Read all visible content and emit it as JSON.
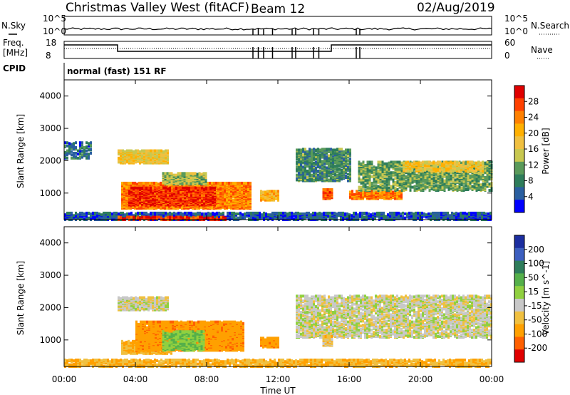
{
  "header": {
    "site": "Christmas Valley West (fitACF)",
    "beam": "Beam 12",
    "date": "02/Aug/2019"
  },
  "params": {
    "nsky_label": "N.Sky",
    "nsearch_label": "N.Search",
    "freq_label_1": "Freq.",
    "freq_label_2": "[MHz]",
    "nave_label": "Nave",
    "cpid_label": "CPID",
    "cpid_text": "normal (fast) 151 RF",
    "noise_ticks": [
      "10^5",
      "10^0"
    ],
    "freq_ticks": [
      "18",
      "8"
    ],
    "nave_ticks": [
      "60",
      "0"
    ]
  },
  "axes": {
    "ylabel": "Slant Range [km]",
    "xlabel": "Time UT",
    "y_ticks": [
      "4000",
      "3000",
      "2000",
      "1000"
    ],
    "x_ticks": [
      "00:00",
      "04:00",
      "08:00",
      "12:00",
      "16:00",
      "20:00",
      "00:00"
    ]
  },
  "colorbars": {
    "power": {
      "label": "Power [dB]",
      "ticks": [
        "28",
        "24",
        "20",
        "16",
        "12",
        "8",
        "4"
      ],
      "colors": [
        "#e00000",
        "#ff4000",
        "#ff8000",
        "#ffb000",
        "#f0c040",
        "#c8c850",
        "#5a9a5a",
        "#2e7d5b",
        "#2a5fa0",
        "#0000ff"
      ]
    },
    "velocity": {
      "label": "Velocity [m s^-1]",
      "ticks": [
        "200",
        "100",
        "50",
        "15",
        "-15",
        "-50",
        "-100",
        "-200"
      ],
      "colors": [
        "#1c2ea0",
        "#3c5fc0",
        "#2e7d5b",
        "#55b04a",
        "#90d040",
        "#c8c8c8",
        "#f0c040",
        "#ffa000",
        "#ff6000",
        "#e00000"
      ]
    }
  },
  "chart_data": [
    {
      "type": "heatmap",
      "title": "Power",
      "xlabel": "Time UT",
      "ylabel": "Slant Range [km]",
      "xlim": [
        0,
        24
      ],
      "ylim": [
        180,
        4500
      ],
      "colorbar": "Power [dB]",
      "regions": [
        {
          "t0": 0.0,
          "t1": 24.0,
          "r0": 200,
          "r1": 420,
          "level": 6,
          "density": 0.7
        },
        {
          "t0": 3.0,
          "t1": 9.0,
          "r0": 200,
          "r1": 300,
          "level": 28,
          "density": 0.6
        },
        {
          "t0": 3.2,
          "t1": 10.5,
          "r0": 550,
          "r1": 1350,
          "level": 24,
          "density": 0.9
        },
        {
          "t0": 3.6,
          "t1": 8.5,
          "r0": 650,
          "r1": 1200,
          "level": 28,
          "density": 0.95
        },
        {
          "t0": 5.5,
          "t1": 8.0,
          "r0": 1300,
          "r1": 1650,
          "level": 14,
          "density": 0.8
        },
        {
          "t0": 3.0,
          "t1": 5.8,
          "r0": 1950,
          "r1": 2350,
          "level": 18,
          "density": 0.8
        },
        {
          "t0": 0.0,
          "t1": 1.5,
          "r0": 2100,
          "r1": 2600,
          "level": 8,
          "density": 0.4
        },
        {
          "t0": 11.0,
          "t1": 12.0,
          "r0": 800,
          "r1": 1100,
          "level": 20,
          "density": 0.7
        },
        {
          "t0": 13.0,
          "t1": 16.0,
          "r0": 1400,
          "r1": 2400,
          "level": 10,
          "density": 0.6
        },
        {
          "t0": 14.5,
          "t1": 15.0,
          "r0": 850,
          "r1": 1150,
          "level": 26,
          "density": 0.9
        },
        {
          "t0": 16.0,
          "t1": 19.0,
          "r0": 850,
          "r1": 1100,
          "level": 24,
          "density": 0.8
        },
        {
          "t0": 16.5,
          "t1": 24.0,
          "r0": 1100,
          "r1": 2000,
          "level": 12,
          "density": 0.55
        },
        {
          "t0": 19.0,
          "t1": 23.5,
          "r0": 1700,
          "r1": 2000,
          "level": 18,
          "density": 0.6
        }
      ]
    },
    {
      "type": "heatmap",
      "title": "Velocity",
      "xlabel": "Time UT",
      "ylabel": "Slant Range [km]",
      "xlim": [
        0,
        24
      ],
      "ylim": [
        180,
        4500
      ],
      "colorbar": "Velocity [m s^-1]",
      "regions": [
        {
          "t0": 0.0,
          "t1": 24.0,
          "r0": 200,
          "r1": 420,
          "level": -30,
          "density": 0.6
        },
        {
          "t0": 3.2,
          "t1": 6.0,
          "r0": 600,
          "r1": 1000,
          "level": -30,
          "density": 0.8
        },
        {
          "t0": 4.0,
          "t1": 10.0,
          "r0": 700,
          "r1": 1600,
          "level": -60,
          "density": 0.85
        },
        {
          "t0": 5.5,
          "t1": 7.8,
          "r0": 700,
          "r1": 1300,
          "level": 30,
          "density": 0.6
        },
        {
          "t0": 3.0,
          "t1": 5.8,
          "r0": 1950,
          "r1": 2350,
          "level": 0,
          "density": 0.8
        },
        {
          "t0": 11.0,
          "t1": 12.0,
          "r0": 800,
          "r1": 1100,
          "level": -60,
          "density": 0.7
        },
        {
          "t0": 13.0,
          "t1": 24.0,
          "r0": 1100,
          "r1": 2400,
          "level": 0,
          "density": 0.55
        },
        {
          "t0": 14.5,
          "t1": 15.0,
          "r0": 850,
          "r1": 1150,
          "level": -20,
          "density": 0.9
        }
      ]
    }
  ]
}
